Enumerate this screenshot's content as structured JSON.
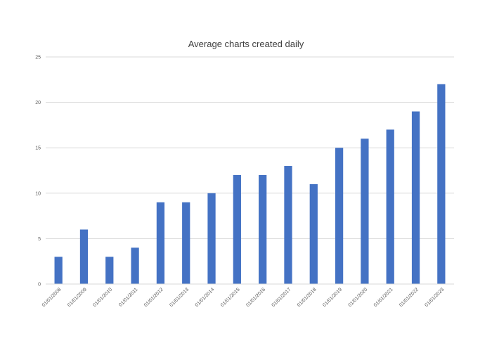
{
  "colors": {
    "bar": "#4472c4",
    "grid": "#d9d9d9",
    "text": "#595959",
    "title": "#404040"
  },
  "chart_data": {
    "type": "bar",
    "title": "Average charts created daily",
    "xlabel": "",
    "ylabel": "",
    "ylim": [
      0,
      25
    ],
    "yticks": [
      0,
      5,
      10,
      15,
      20,
      25
    ],
    "grid": true,
    "legend": "none",
    "categories": [
      "01/01/2008",
      "01/01/2009",
      "01/01/2010",
      "01/01/2011",
      "01/01/2012",
      "01/01/2013",
      "01/01/2014",
      "01/01/2015",
      "01/01/2016",
      "01/01/2017",
      "01/01/2018",
      "01/01/2019",
      "01/01/2020",
      "01/01/2021",
      "01/01/2022",
      "01/01/2023"
    ],
    "values": [
      3,
      6,
      3,
      4,
      9,
      9,
      10,
      12,
      12,
      13,
      11,
      15,
      16,
      17,
      19,
      22
    ]
  }
}
